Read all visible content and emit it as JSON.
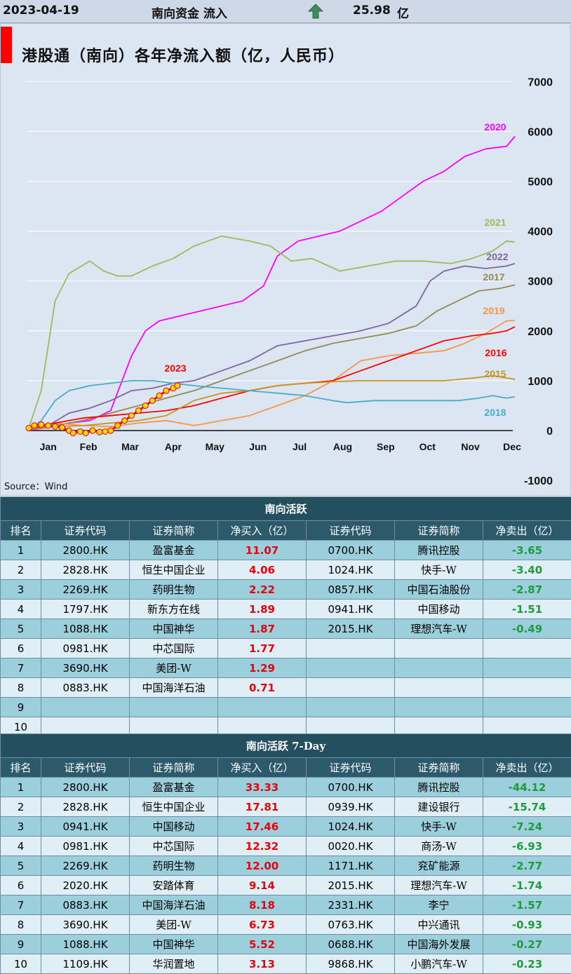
{
  "header": {
    "date": "2023-04-19",
    "label": "南向资金 流入",
    "value": "25.98",
    "unit": "亿"
  },
  "source": "Source：Wind",
  "chart_data": {
    "type": "line",
    "title": "港股通（南向）各年净流入额（亿，人民币）",
    "xlabel": "",
    "ylabel": "",
    "categories": [
      "Jan",
      "Feb",
      "Mar",
      "Apr",
      "May",
      "Jun",
      "Jul",
      "Aug",
      "Sep",
      "Oct",
      "Nov",
      "Dec"
    ],
    "x_days": [
      0,
      29,
      59,
      90,
      120,
      151,
      181,
      212,
      243,
      273,
      304,
      334
    ],
    "yticks": [
      -1000,
      0,
      1000,
      2000,
      3000,
      4000,
      5000,
      6000,
      7000
    ],
    "ylim": [
      -1000,
      7000
    ],
    "legend_placement": "line-end labels",
    "series": [
      {
        "name": "2020",
        "color": "#ff00ff",
        "points": [
          [
            1,
            10
          ],
          [
            15,
            60
          ],
          [
            30,
            150
          ],
          [
            45,
            200
          ],
          [
            60,
            400
          ],
          [
            75,
            1500
          ],
          [
            85,
            2000
          ],
          [
            95,
            2200
          ],
          [
            110,
            2300
          ],
          [
            125,
            2400
          ],
          [
            140,
            2500
          ],
          [
            155,
            2600
          ],
          [
            170,
            2900
          ],
          [
            180,
            3500
          ],
          [
            195,
            3800
          ],
          [
            210,
            3900
          ],
          [
            225,
            4000
          ],
          [
            240,
            4200
          ],
          [
            255,
            4400
          ],
          [
            270,
            4700
          ],
          [
            285,
            5000
          ],
          [
            300,
            5200
          ],
          [
            315,
            5500
          ],
          [
            330,
            5650
          ],
          [
            345,
            5700
          ],
          [
            351,
            5900
          ]
        ]
      },
      {
        "name": "2021",
        "color": "#9bbb59",
        "points": [
          [
            1,
            50
          ],
          [
            10,
            800
          ],
          [
            20,
            2600
          ],
          [
            30,
            3150
          ],
          [
            45,
            3400
          ],
          [
            55,
            3200
          ],
          [
            65,
            3100
          ],
          [
            75,
            3100
          ],
          [
            90,
            3300
          ],
          [
            105,
            3450
          ],
          [
            120,
            3700
          ],
          [
            140,
            3900
          ],
          [
            160,
            3800
          ],
          [
            175,
            3700
          ],
          [
            190,
            3400
          ],
          [
            205,
            3450
          ],
          [
            225,
            3200
          ],
          [
            245,
            3300
          ],
          [
            265,
            3400
          ],
          [
            285,
            3400
          ],
          [
            305,
            3350
          ],
          [
            320,
            3450
          ],
          [
            335,
            3600
          ],
          [
            345,
            3800
          ],
          [
            351,
            3780
          ]
        ]
      },
      {
        "name": "2022",
        "color": "#8064a2",
        "points": [
          [
            1,
            20
          ],
          [
            15,
            100
          ],
          [
            30,
            350
          ],
          [
            45,
            450
          ],
          [
            60,
            600
          ],
          [
            75,
            800
          ],
          [
            90,
            850
          ],
          [
            105,
            950
          ],
          [
            120,
            1000
          ],
          [
            140,
            1200
          ],
          [
            160,
            1400
          ],
          [
            180,
            1700
          ],
          [
            200,
            1800
          ],
          [
            220,
            1900
          ],
          [
            240,
            2000
          ],
          [
            260,
            2150
          ],
          [
            280,
            2500
          ],
          [
            290,
            3000
          ],
          [
            300,
            3200
          ],
          [
            315,
            3300
          ],
          [
            330,
            3250
          ],
          [
            345,
            3300
          ],
          [
            351,
            3350
          ]
        ]
      },
      {
        "name": "2017",
        "color": "#938953",
        "points": [
          [
            1,
            20
          ],
          [
            20,
            100
          ],
          [
            40,
            200
          ],
          [
            60,
            350
          ],
          [
            80,
            500
          ],
          [
            100,
            650
          ],
          [
            120,
            800
          ],
          [
            140,
            1000
          ],
          [
            160,
            1200
          ],
          [
            180,
            1400
          ],
          [
            200,
            1600
          ],
          [
            220,
            1750
          ],
          [
            240,
            1850
          ],
          [
            260,
            1950
          ],
          [
            280,
            2100
          ],
          [
            295,
            2400
          ],
          [
            310,
            2600
          ],
          [
            325,
            2800
          ],
          [
            340,
            2850
          ],
          [
            351,
            2920
          ]
        ]
      },
      {
        "name": "2019",
        "color": "#f79646",
        "points": [
          [
            1,
            20
          ],
          [
            20,
            150
          ],
          [
            40,
            100
          ],
          [
            60,
            80
          ],
          [
            80,
            150
          ],
          [
            100,
            200
          ],
          [
            120,
            100
          ],
          [
            140,
            200
          ],
          [
            160,
            300
          ],
          [
            180,
            500
          ],
          [
            200,
            700
          ],
          [
            220,
            1000
          ],
          [
            240,
            1400
          ],
          [
            260,
            1500
          ],
          [
            280,
            1550
          ],
          [
            300,
            1600
          ],
          [
            315,
            1750
          ],
          [
            330,
            1950
          ],
          [
            345,
            2200
          ],
          [
            351,
            2210
          ]
        ]
      },
      {
        "name": "2016",
        "color": "#ff0000",
        "points": [
          [
            1,
            20
          ],
          [
            20,
            150
          ],
          [
            40,
            250
          ],
          [
            60,
            300
          ],
          [
            80,
            350
          ],
          [
            100,
            400
          ],
          [
            120,
            500
          ],
          [
            140,
            650
          ],
          [
            160,
            800
          ],
          [
            180,
            900
          ],
          [
            200,
            950
          ],
          [
            220,
            1000
          ],
          [
            240,
            1200
          ],
          [
            260,
            1400
          ],
          [
            280,
            1600
          ],
          [
            300,
            1800
          ],
          [
            320,
            1900
          ],
          [
            335,
            1950
          ],
          [
            345,
            2000
          ],
          [
            351,
            2080
          ]
        ]
      },
      {
        "name": "2015",
        "color": "#c8961e",
        "points": [
          [
            1,
            20
          ],
          [
            20,
            80
          ],
          [
            40,
            100
          ],
          [
            60,
            150
          ],
          [
            80,
            200
          ],
          [
            100,
            300
          ],
          [
            120,
            600
          ],
          [
            140,
            750
          ],
          [
            160,
            800
          ],
          [
            180,
            900
          ],
          [
            200,
            950
          ],
          [
            220,
            980
          ],
          [
            240,
            1000
          ],
          [
            260,
            1000
          ],
          [
            280,
            1000
          ],
          [
            300,
            1000
          ],
          [
            320,
            1050
          ],
          [
            335,
            1100
          ],
          [
            351,
            1030
          ]
        ]
      },
      {
        "name": "2018",
        "color": "#4bacc6",
        "points": [
          [
            1,
            20
          ],
          [
            10,
            200
          ],
          [
            20,
            600
          ],
          [
            30,
            800
          ],
          [
            45,
            900
          ],
          [
            60,
            950
          ],
          [
            75,
            1000
          ],
          [
            90,
            1000
          ],
          [
            105,
            950
          ],
          [
            120,
            900
          ],
          [
            140,
            850
          ],
          [
            160,
            800
          ],
          [
            180,
            750
          ],
          [
            200,
            700
          ],
          [
            220,
            600
          ],
          [
            230,
            560
          ],
          [
            250,
            600
          ],
          [
            270,
            600
          ],
          [
            290,
            600
          ],
          [
            310,
            600
          ],
          [
            325,
            650
          ],
          [
            335,
            700
          ],
          [
            345,
            650
          ],
          [
            351,
            680
          ]
        ]
      },
      {
        "name": "2023",
        "color": "#ff0000",
        "points": [
          [
            1,
            50
          ],
          [
            5,
            100
          ],
          [
            10,
            120
          ],
          [
            15,
            100
          ],
          [
            20,
            80
          ],
          [
            25,
            60
          ],
          [
            30,
            0
          ],
          [
            33,
            -50
          ],
          [
            38,
            -20
          ],
          [
            42,
            -50
          ],
          [
            47,
            0
          ],
          [
            52,
            -30
          ],
          [
            56,
            -20
          ],
          [
            60,
            0
          ],
          [
            65,
            100
          ],
          [
            70,
            200
          ],
          [
            75,
            300
          ],
          [
            80,
            400
          ],
          [
            85,
            500
          ],
          [
            90,
            600
          ],
          [
            95,
            700
          ],
          [
            100,
            800
          ],
          [
            105,
            850
          ],
          [
            108,
            900
          ]
        ]
      }
    ]
  },
  "table1": {
    "title": "南向活跃",
    "columns": [
      "排名",
      "证券代码",
      "证券简称",
      "净买入（亿）",
      "证券代码",
      "证券简称",
      "净卖出（亿）"
    ],
    "rows": [
      [
        "1",
        "2800.HK",
        "盈富基金",
        "11.07",
        "0700.HK",
        "腾讯控股",
        "-3.65"
      ],
      [
        "2",
        "2828.HK",
        "恒生中国企业",
        "4.06",
        "1024.HK",
        "快手-W",
        "-3.40"
      ],
      [
        "3",
        "2269.HK",
        "药明生物",
        "2.22",
        "0857.HK",
        "中国石油股份",
        "-2.87"
      ],
      [
        "4",
        "1797.HK",
        "新东方在线",
        "1.89",
        "0941.HK",
        "中国移动",
        "-1.51"
      ],
      [
        "5",
        "1088.HK",
        "中国神华",
        "1.87",
        "2015.HK",
        "理想汽车-W",
        "-0.49"
      ],
      [
        "6",
        "0981.HK",
        "中芯国际",
        "1.77",
        "",
        "",
        ""
      ],
      [
        "7",
        "3690.HK",
        "美团-W",
        "1.29",
        "",
        "",
        ""
      ],
      [
        "8",
        "0883.HK",
        "中国海洋石油",
        "0.71",
        "",
        "",
        ""
      ],
      [
        "9",
        "",
        "",
        "",
        "",
        "",
        ""
      ],
      [
        "10",
        "",
        "",
        "",
        "",
        "",
        ""
      ]
    ]
  },
  "table2": {
    "title": "南向活跃 7-Day",
    "columns": [
      "排名",
      "证券代码",
      "证券简称",
      "净买入（亿）",
      "证券代码",
      "证券简称",
      "净卖出（亿）"
    ],
    "rows": [
      [
        "1",
        "2800.HK",
        "盈富基金",
        "33.33",
        "0700.HK",
        "腾讯控股",
        "-44.12"
      ],
      [
        "2",
        "2828.HK",
        "恒生中国企业",
        "17.81",
        "0939.HK",
        "建设银行",
        "-15.74"
      ],
      [
        "3",
        "0941.HK",
        "中国移动",
        "17.46",
        "1024.HK",
        "快手-W",
        "-7.24"
      ],
      [
        "4",
        "0981.HK",
        "中芯国际",
        "12.32",
        "0020.HK",
        "商汤-W",
        "-6.93"
      ],
      [
        "5",
        "2269.HK",
        "药明生物",
        "12.00",
        "1171.HK",
        "兖矿能源",
        "-2.77"
      ],
      [
        "6",
        "2020.HK",
        "安踏体育",
        "9.14",
        "2015.HK",
        "理想汽车-W",
        "-1.74"
      ],
      [
        "7",
        "0883.HK",
        "中国海洋石油",
        "8.18",
        "2331.HK",
        "李宁",
        "-1.57"
      ],
      [
        "8",
        "3690.HK",
        "美团-W",
        "6.73",
        "0763.HK",
        "中兴通讯",
        "-0.93"
      ],
      [
        "9",
        "1088.HK",
        "中国神华",
        "5.52",
        "0688.HK",
        "中国海外发展",
        "-0.27"
      ],
      [
        "10",
        "1109.HK",
        "华润置地",
        "3.13",
        "9868.HK",
        "小鹏汽车-W",
        "-0.23"
      ]
    ]
  }
}
